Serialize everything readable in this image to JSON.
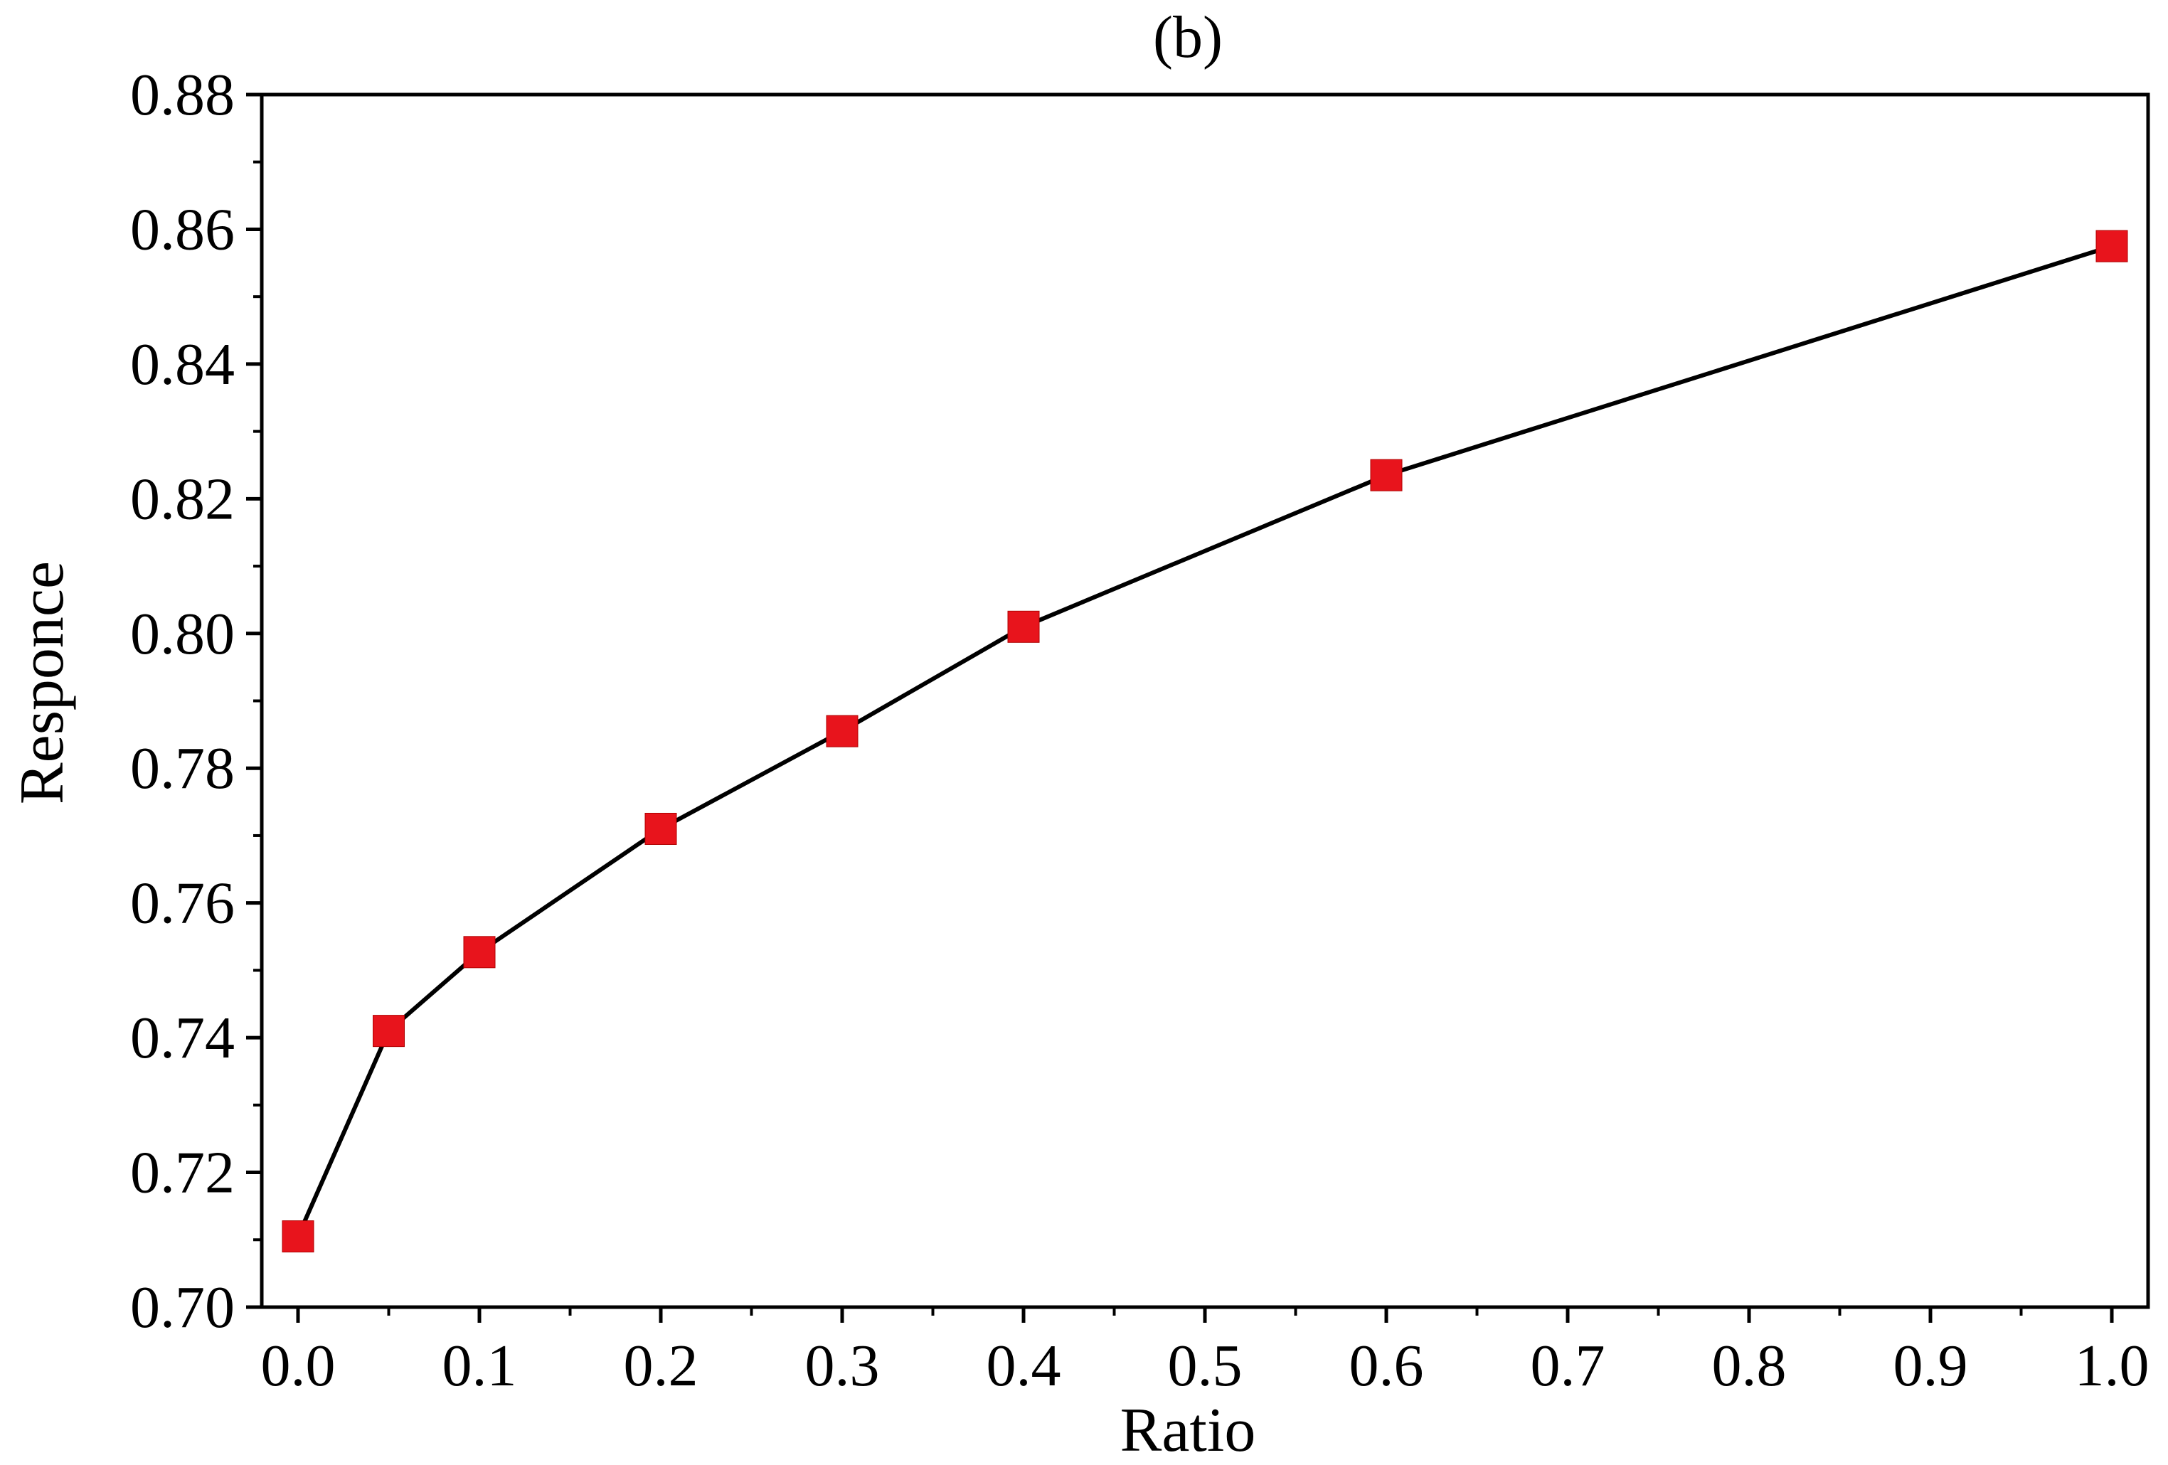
{
  "chart_data": {
    "type": "line",
    "title": "(b)",
    "xlabel": "Ratio",
    "ylabel": "Responce",
    "xlim": [
      -0.02,
      1.02
    ],
    "ylim": [
      0.7,
      0.88
    ],
    "x_ticks": [
      0.0,
      0.1,
      0.2,
      0.3,
      0.4,
      0.5,
      0.6,
      0.7,
      0.8,
      0.9,
      1.0
    ],
    "x_tick_labels": [
      "0.0",
      "0.1",
      "0.2",
      "0.3",
      "0.4",
      "0.5",
      "0.6",
      "0.7",
      "0.8",
      "0.9",
      "1.0"
    ],
    "y_ticks": [
      0.7,
      0.72,
      0.74,
      0.76,
      0.78,
      0.8,
      0.82,
      0.84,
      0.86,
      0.88
    ],
    "y_tick_labels": [
      "0.70",
      "0.72",
      "0.74",
      "0.76",
      "0.78",
      "0.80",
      "0.82",
      "0.84",
      "0.86",
      "0.88"
    ],
    "grid": false,
    "legend": "none",
    "series": [
      {
        "x": [
          0.0,
          0.05,
          0.1,
          0.2,
          0.3,
          0.4,
          0.6,
          1.0
        ],
        "y": [
          0.7105,
          0.741,
          0.7527,
          0.771,
          0.7855,
          0.801,
          0.8235,
          0.8575
        ],
        "line_color": "#000000",
        "marker": "square",
        "marker_color": "#e8141c"
      }
    ]
  }
}
